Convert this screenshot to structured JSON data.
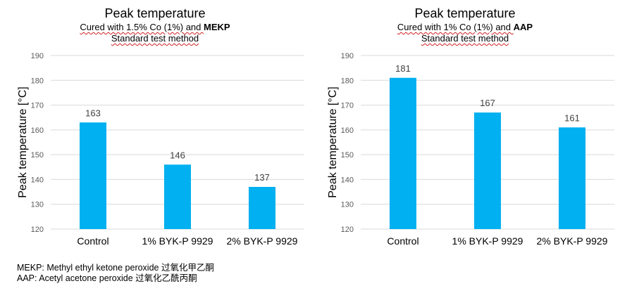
{
  "chart_data": [
    {
      "type": "bar",
      "title": "Peak temperature",
      "subtitle_prefix": "Cured with 1.5% Co (1%) and ",
      "subtitle_bold": "MEKP",
      "subtitle2": "Standard test method",
      "ylabel": "Peak temperature [°C]",
      "xlabel": "",
      "categories": [
        "Control",
        "1% BYK-P 9929",
        "2% BYK-P 9929"
      ],
      "values": [
        163,
        146,
        137
      ],
      "ylim": [
        120,
        190
      ],
      "yticks": [
        120,
        130,
        140,
        150,
        160,
        170,
        180,
        190
      ],
      "grid": true,
      "bar_color": "#00b0f0"
    },
    {
      "type": "bar",
      "title": "Peak temperature",
      "subtitle_prefix": "Cured with 1% Co (1%) and ",
      "subtitle_bold": "AAP",
      "subtitle2": "Standard test method",
      "ylabel": "Peak temperature [°C]",
      "xlabel": "",
      "categories": [
        "Control",
        "1% BYK-P 9929",
        "2% BYK-P 9929"
      ],
      "values": [
        181,
        167,
        161
      ],
      "ylim": [
        120,
        190
      ],
      "yticks": [
        120,
        130,
        140,
        150,
        160,
        170,
        180,
        190
      ],
      "grid": true,
      "bar_color": "#00b0f0"
    }
  ],
  "notes": [
    "MEKP: Methyl ethyl ketone peroxide 过氧化甲乙酮",
    "AAP: Acetyl acetone peroxide 过氧化乙酰丙酮"
  ]
}
